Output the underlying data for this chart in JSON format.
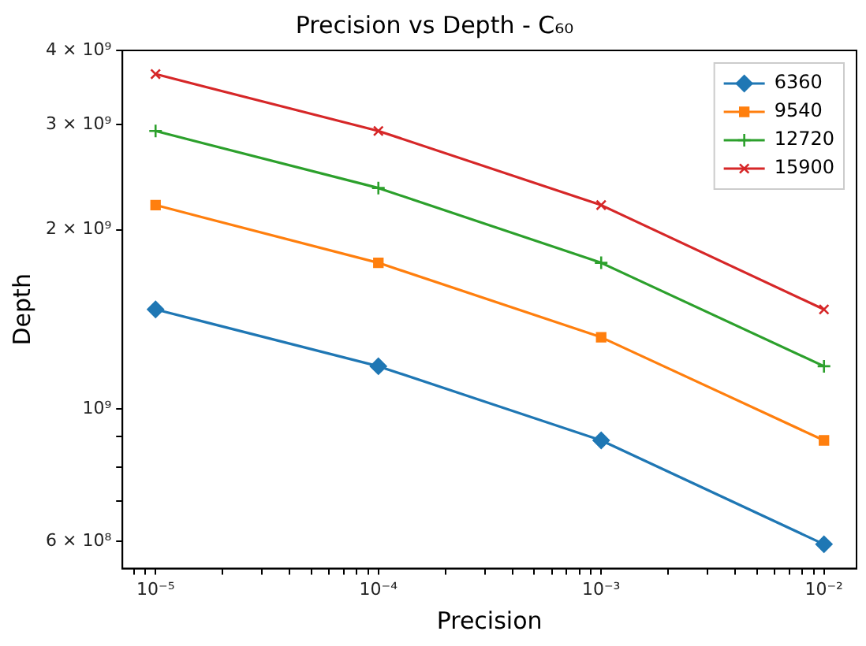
{
  "chart_data": {
    "type": "line",
    "title": "Precision vs Depth - C₆₀",
    "xlabel": "Precision",
    "ylabel": "Depth",
    "x": [
      1e-05,
      0.0001,
      0.001,
      0.01
    ],
    "series": [
      {
        "name": "6360",
        "color": "#1f77b4",
        "marker": "diamond",
        "values": [
          1470000000.0,
          1180000000.0,
          886000000.0,
          593000000.0
        ]
      },
      {
        "name": "9540",
        "color": "#ff7f0e",
        "marker": "square",
        "values": [
          2200000000.0,
          1760000000.0,
          1320000000.0,
          886000000.0
        ]
      },
      {
        "name": "12720",
        "color": "#2ca02c",
        "marker": "cross",
        "values": [
          2930000000.0,
          2350000000.0,
          1760000000.0,
          1180000000.0
        ]
      },
      {
        "name": "15900",
        "color": "#d62728",
        "marker": "x",
        "values": [
          3650000000.0,
          2930000000.0,
          2200000000.0,
          1470000000.0
        ]
      }
    ],
    "log": "xy",
    "xlim": [
      7.1e-06,
      0.014
    ],
    "xticks": [
      {
        "value": 8e-06,
        "label": null
      },
      {
        "value": 9e-06,
        "label": null
      },
      {
        "value": 1e-05,
        "label": "10⁻⁵"
      },
      {
        "value": 2e-05,
        "label": null
      },
      {
        "value": 3e-05,
        "label": null
      },
      {
        "value": 4e-05,
        "label": null
      },
      {
        "value": 5e-05,
        "label": null
      },
      {
        "value": 6e-05,
        "label": null
      },
      {
        "value": 7e-05,
        "label": null
      },
      {
        "value": 8e-05,
        "label": null
      },
      {
        "value": 9e-05,
        "label": null
      },
      {
        "value": 0.0001,
        "label": "10⁻⁴"
      },
      {
        "value": 0.0002,
        "label": null
      },
      {
        "value": 0.0003,
        "label": null
      },
      {
        "value": 0.0004,
        "label": null
      },
      {
        "value": 0.0005,
        "label": null
      },
      {
        "value": 0.0006,
        "label": null
      },
      {
        "value": 0.0007,
        "label": null
      },
      {
        "value": 0.0008,
        "label": null
      },
      {
        "value": 0.0009,
        "label": null
      },
      {
        "value": 0.001,
        "label": "10⁻³"
      },
      {
        "value": 0.002,
        "label": null
      },
      {
        "value": 0.003,
        "label": null
      },
      {
        "value": 0.004,
        "label": null
      },
      {
        "value": 0.005,
        "label": null
      },
      {
        "value": 0.006,
        "label": null
      },
      {
        "value": 0.007,
        "label": null
      },
      {
        "value": 0.008,
        "label": null
      },
      {
        "value": 0.009,
        "label": null
      },
      {
        "value": 0.01,
        "label": "10⁻²"
      }
    ],
    "ylim": [
      540000000.0,
      4000000000.0
    ],
    "yticks": [
      {
        "value": 600000000.0,
        "label": "6 × 10⁸"
      },
      {
        "value": 700000000.0,
        "label": null
      },
      {
        "value": 800000000.0,
        "label": null
      },
      {
        "value": 900000000.0,
        "label": null
      },
      {
        "value": 1000000000.0,
        "label": "10⁹"
      },
      {
        "value": 2000000000.0,
        "label": "2 × 10⁹"
      },
      {
        "value": 3000000000.0,
        "label": "3 × 10⁹"
      },
      {
        "value": 4000000000.0,
        "label": "4 × 10⁹"
      }
    ],
    "grid": false,
    "legend": "top right",
    "line_style": "solid"
  }
}
